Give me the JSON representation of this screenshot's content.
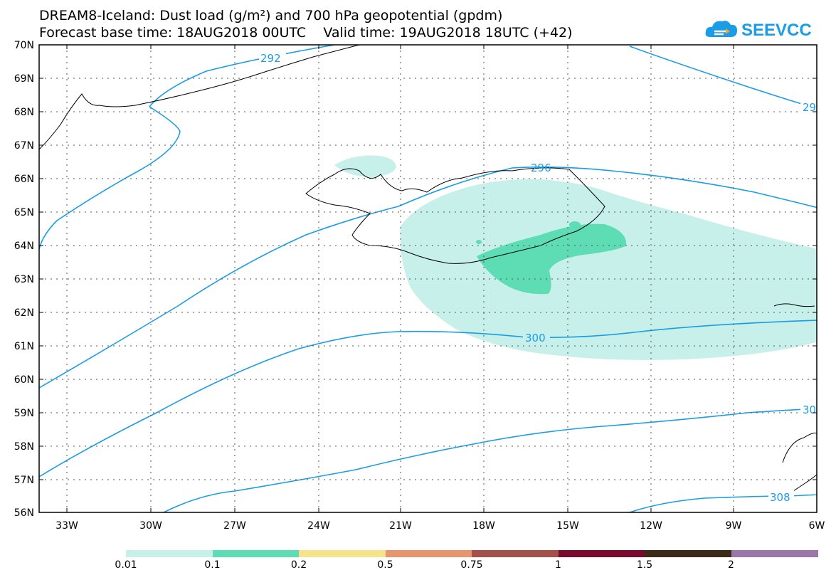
{
  "title_line1": "DREAM8-Iceland: Dust load (g/m²) and 700 hPa geopotential (gpdm)",
  "title_line2": "Forecast base time: 18AUG2018 00UTC    Valid time: 19AUG2018 18UTC (+42)",
  "logo_text": "SEEVCCC",
  "lat_labels": [
    "70N",
    "69N",
    "68N",
    "67N",
    "66N",
    "65N",
    "64N",
    "63N",
    "62N",
    "61N",
    "60N",
    "59N",
    "58N",
    "57N",
    "56N"
  ],
  "lon_labels": [
    "33W",
    "30W",
    "27W",
    "24W",
    "21W",
    "18W",
    "15W",
    "12W",
    "9W",
    "6W"
  ],
  "contour_labels": [
    "292",
    "296",
    "300",
    "29",
    "30",
    "308"
  ],
  "colorbar": {
    "labels": [
      "0.01",
      "0.1",
      "0.2",
      "0.5",
      "0.75",
      "1",
      "1.5",
      "2"
    ],
    "colors": [
      "#c6f0e9",
      "#5edcb4",
      "#f6e48a",
      "#e7956c",
      "#a35149",
      "#7a0a2d",
      "#3b2a17",
      "#9c76a9"
    ]
  },
  "colors": {
    "contour": "#1a9ce6",
    "dust_low": "#c6f0e9",
    "dust_mid": "#5edcb4",
    "logo": "#1a9ce6"
  }
}
